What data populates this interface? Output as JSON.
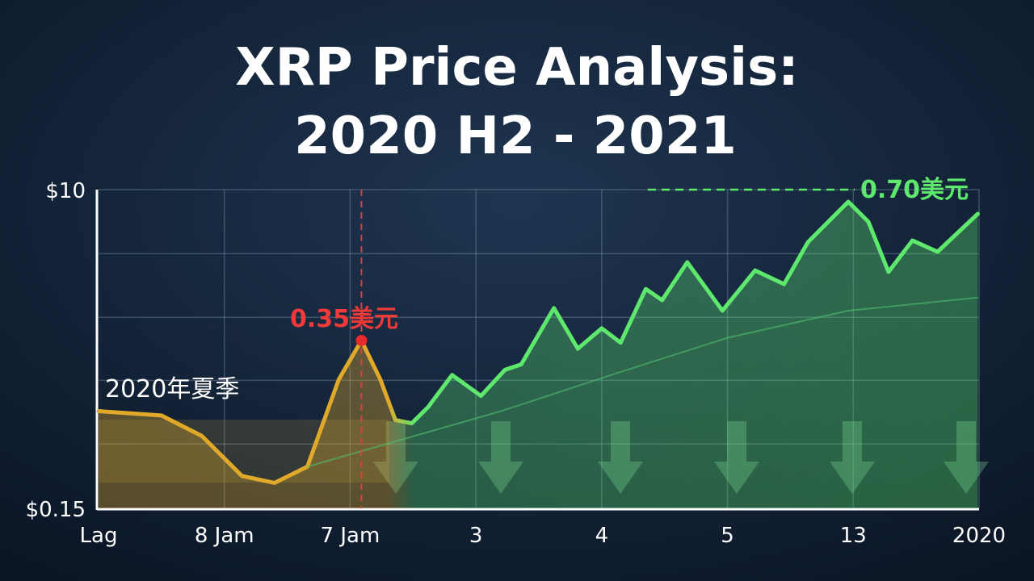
{
  "chart_data": {
    "type": "line",
    "title": [
      "XRP Price Analysis:",
      "2020 H2 - 2021"
    ],
    "annotations": [
      "2020年夏季",
      "0.35美元",
      "0.70美元"
    ],
    "log_y": true,
    "grid": true,
    "xlim": [
      0,
      7
    ],
    "xticks": [
      {
        "value": 0,
        "label": "Lag"
      },
      {
        "value": 1,
        "label": "8 Jam"
      },
      {
        "value": 2,
        "label": "7 Jam"
      },
      3,
      4,
      5,
      {
        "value": 6,
        "label": "13"
      },
      {
        "value": 7,
        "label": "2020"
      }
    ],
    "ylim": [
      0.15,
      10
    ],
    "yticks": [
      {
        "value": 0.15,
        "label": "$0.15"
      },
      {
        "value": 10,
        "label": "$10"
      }
    ],
    "ygrid": [
      0.35,
      0.81,
      1.86,
      4.3
    ],
    "series": [
      {
        "colors": [
          "#e0a92a",
          "#5ee86e"
        ],
        "x": [
          0,
          0.5,
          0.82,
          1.14,
          1.4,
          1.66,
          1.91,
          2.09,
          2.24,
          2.36,
          2.49,
          2.62,
          2.81,
          3.04,
          3.23,
          3.36,
          3.62,
          3.81,
          4.0,
          4.15,
          4.35,
          4.48,
          4.68,
          4.96,
          5.22,
          5.45,
          5.64,
          5.96,
          6.12,
          6.28,
          6.47,
          6.67,
          6.99
        ],
        "values": [
          0.54,
          0.51,
          0.39,
          0.23,
          0.21,
          0.26,
          0.82,
          1.37,
          0.82,
          0.48,
          0.46,
          0.57,
          0.87,
          0.66,
          0.93,
          1.0,
          2.1,
          1.23,
          1.61,
          1.33,
          2.7,
          2.33,
          3.84,
          2.03,
          3.45,
          2.88,
          5.01,
          8.53,
          6.54,
          3.38,
          5.12,
          4.41,
          7.27
        ]
      },
      {
        "color": "#4fbf6a",
        "x": [
          1.66,
          3.2,
          4.16,
          5.0,
          5.96,
          6.99
        ],
        "values": [
          0.26,
          0.54,
          0.91,
          1.42,
          2.03,
          2.41
        ]
      }
    ]
  }
}
